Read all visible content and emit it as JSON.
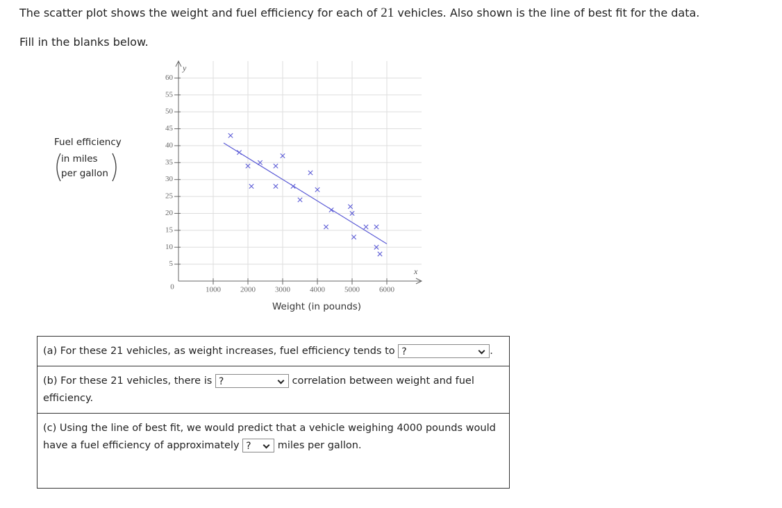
{
  "header": {
    "intro_before": "The scatter plot shows the weight and fuel efficiency for each of",
    "count": "21",
    "intro_after": "vehicles. Also shown is the line of best fit for the data.",
    "instruction": "Fill in the blanks below."
  },
  "chart_data": {
    "type": "scatter",
    "y_label": {
      "title": "Fuel efficiency",
      "unit_lines": [
        "in miles",
        "per gallon"
      ]
    },
    "x_label": "Weight (in pounds)",
    "x_axis_letter": "x",
    "y_axis_letter": "y",
    "xlim": [
      0,
      7000
    ],
    "ylim": [
      0,
      65
    ],
    "xticks": [
      0,
      1000,
      2000,
      3000,
      4000,
      5000,
      6000
    ],
    "yticks": [
      5,
      10,
      15,
      20,
      25,
      30,
      35,
      40,
      45,
      50,
      55,
      60
    ],
    "grid": true,
    "points": {
      "color": "#5b5bd6",
      "x": [
        1500,
        1750,
        2000,
        2100,
        2350,
        2800,
        2800,
        3000,
        3300,
        3500,
        3800,
        4000,
        4250,
        4400,
        4950,
        5000,
        5050,
        5400,
        5700,
        5700,
        5800
      ],
      "y": [
        43,
        38,
        34,
        28,
        35,
        34,
        28,
        37,
        28,
        24,
        32,
        27,
        16,
        21,
        22,
        20,
        13,
        16,
        16,
        10,
        8
      ]
    },
    "fit_line": {
      "color": "#5b5bd6",
      "x": [
        1300,
        6000
      ],
      "y": [
        40.8,
        11
      ]
    }
  },
  "questions": [
    {
      "before": "(a) For these 21 vehicles, as weight increases, fuel efficiency tends to",
      "select": "?",
      "after": "."
    },
    {
      "before": "(b) For these 21 vehicles, there is",
      "select": "?",
      "after": "correlation between weight and fuel efficiency."
    },
    {
      "before": "(c) Using the line of best fit, we would predict that a vehicle weighing 4000 pounds would have a fuel efficiency of approximately",
      "select": "?",
      "after": "miles per gallon."
    }
  ]
}
